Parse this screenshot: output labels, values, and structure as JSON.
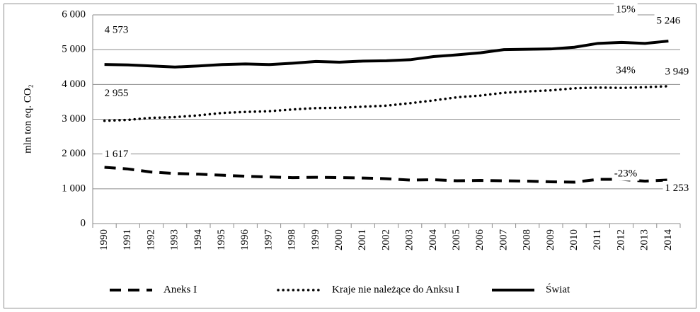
{
  "chart_data": {
    "type": "line",
    "y_label": "mln ton eq. CO₂",
    "categories": [
      "1990",
      "1991",
      "1992",
      "1993",
      "1994",
      "1995",
      "1996",
      "1997",
      "1998",
      "1999",
      "2000",
      "2001",
      "2002",
      "2003",
      "2004",
      "2005",
      "2006",
      "2007",
      "2008",
      "2009",
      "2010",
      "2011",
      "2012",
      "2013",
      "2014"
    ],
    "ylim": [
      0,
      6000
    ],
    "yticks": [
      {
        "value": 0,
        "label": "0"
      },
      {
        "value": 1000,
        "label": "1 000"
      },
      {
        "value": 2000,
        "label": "2 000"
      },
      {
        "value": 3000,
        "label": "3 000"
      },
      {
        "value": 4000,
        "label": "4 000"
      },
      {
        "value": 5000,
        "label": "5 000"
      },
      {
        "value": 6000,
        "label": "6 000"
      }
    ],
    "grid": true,
    "legend": "bottom",
    "series": [
      {
        "name": "Aneks I",
        "color": "#000000",
        "dash": "dashed",
        "values": [
          1617,
          1570,
          1480,
          1440,
          1420,
          1390,
          1360,
          1340,
          1320,
          1330,
          1320,
          1310,
          1290,
          1250,
          1260,
          1230,
          1240,
          1230,
          1220,
          1200,
          1190,
          1270,
          1270,
          1220,
          1253
        ],
        "value_labels": [
          "1 617",
          null,
          null,
          null,
          null,
          null,
          null,
          null,
          null,
          null,
          null,
          null,
          null,
          null,
          null,
          null,
          null,
          null,
          null,
          null,
          null,
          null,
          null,
          null,
          "1 253"
        ]
      },
      {
        "name": "Kraje nie należące do Anksu I",
        "color": "#000000",
        "dash": "dotted",
        "values": [
          2955,
          2980,
          3040,
          3060,
          3110,
          3180,
          3210,
          3230,
          3280,
          3320,
          3330,
          3360,
          3390,
          3460,
          3540,
          3630,
          3680,
          3760,
          3800,
          3830,
          3890,
          3910,
          3900,
          3920,
          3949
        ],
        "value_labels": [
          "2 955",
          null,
          null,
          null,
          null,
          null,
          null,
          null,
          null,
          null,
          null,
          null,
          null,
          null,
          null,
          null,
          null,
          null,
          null,
          null,
          null,
          null,
          null,
          null,
          "3 949"
        ]
      },
      {
        "name": "Świat",
        "color": "#000000",
        "dash": "solid",
        "values": [
          4573,
          4560,
          4530,
          4500,
          4530,
          4570,
          4590,
          4570,
          4610,
          4660,
          4640,
          4670,
          4680,
          4710,
          4800,
          4850,
          4910,
          5000,
          5010,
          5020,
          5070,
          5180,
          5210,
          5180,
          5246
        ],
        "value_labels": [
          "4 573",
          null,
          null,
          null,
          null,
          null,
          null,
          null,
          null,
          null,
          null,
          null,
          null,
          null,
          null,
          null,
          null,
          null,
          null,
          null,
          null,
          null,
          null,
          null,
          "5 246"
        ]
      }
    ],
    "annotations": [
      "-23%",
      "34%",
      "15%"
    ]
  }
}
